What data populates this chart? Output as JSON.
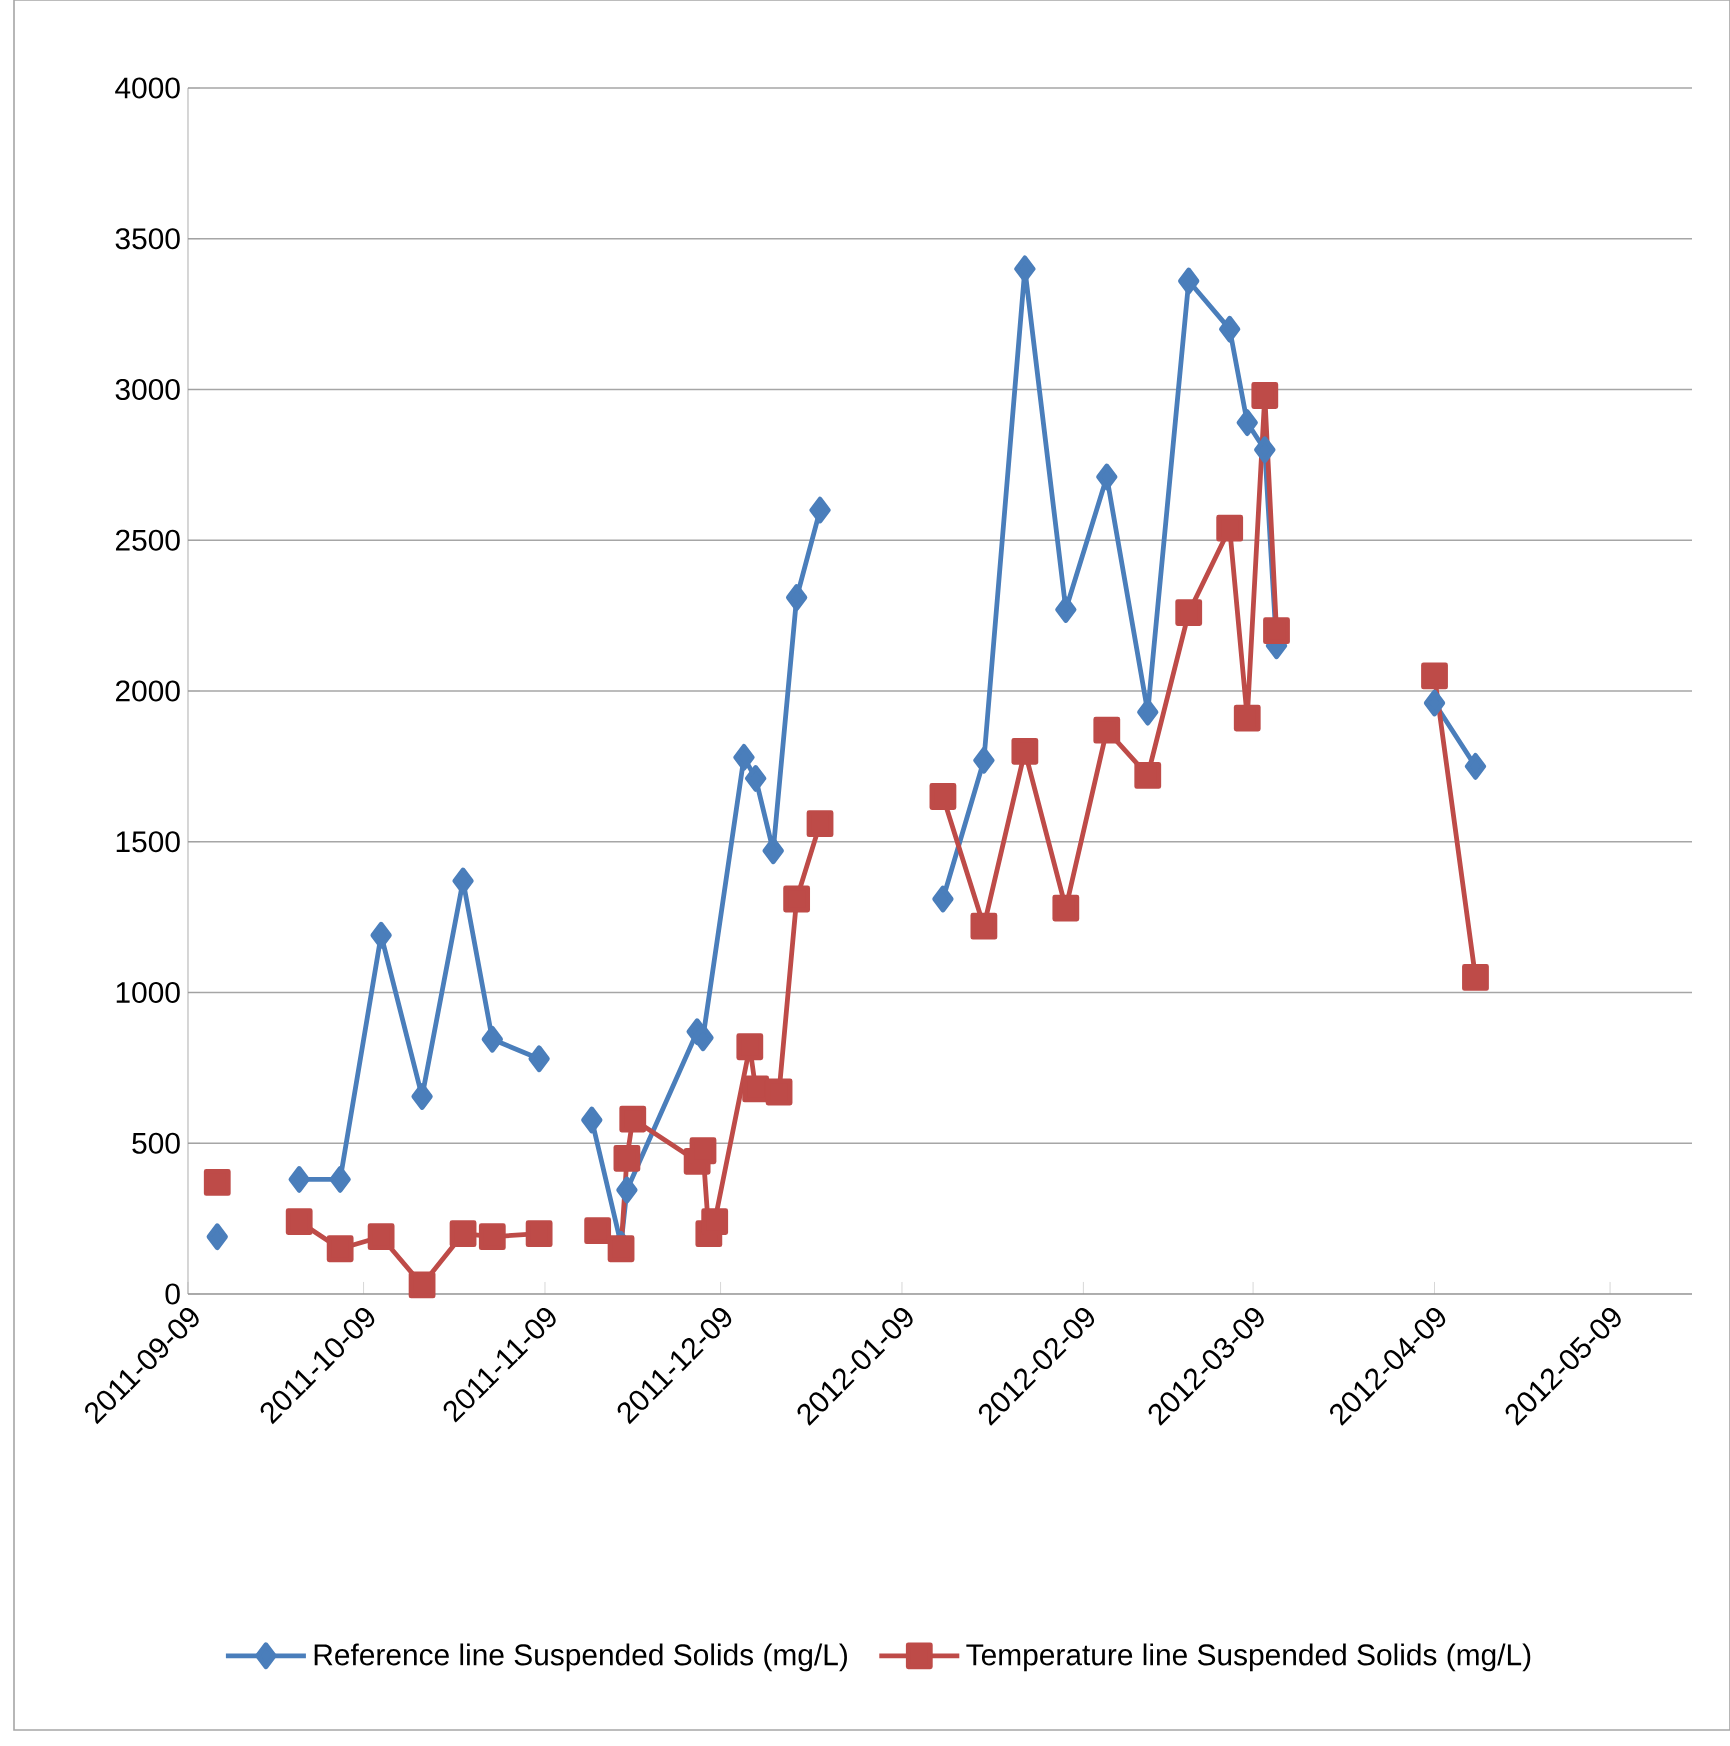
{
  "chart_data": {
    "type": "line",
    "xlim": [
      "2011-09-09",
      "2012-05-23"
    ],
    "xticks": [
      "2011-09-09",
      "2011-10-09",
      "2011-11-09",
      "2011-12-09",
      "2012-01-09",
      "2012-02-09",
      "2012-03-09",
      "2012-04-09",
      "2012-05-09"
    ],
    "ylim": [
      0,
      4000
    ],
    "yticks": [
      0,
      500,
      1000,
      1500,
      2000,
      2500,
      3000,
      3500,
      4000
    ],
    "grid": "y",
    "legend": "bottom",
    "line_style": "solid",
    "series": [
      {
        "name": "Reference line Suspended Solids (mg/L)",
        "color": "#4a7ebb",
        "marker": "diamond",
        "x": [
          "2011-09-14",
          "2011-09-21",
          "2011-09-28",
          "2011-10-05",
          "2011-10-12",
          "2011-10-19",
          "2011-10-26",
          "2011-10-31",
          "2011-11-08",
          "2011-11-12",
          "2011-11-17",
          "2011-11-22",
          "2011-11-23",
          "2011-12-05",
          "2011-12-06",
          "2011-12-13",
          "2011-12-15",
          "2011-12-18",
          "2011-12-22",
          "2011-12-26",
          "2012-01-05",
          "2012-01-16",
          "2012-01-23",
          "2012-01-30",
          "2012-02-06",
          "2012-02-13",
          "2012-02-20",
          "2012-02-27",
          "2012-03-05",
          "2012-03-08",
          "2012-03-11",
          "2012-03-13",
          "2012-03-25",
          "2012-04-09",
          "2012-04-16"
        ],
        "values": [
          190,
          null,
          380,
          380,
          1190,
          655,
          1370,
          845,
          780,
          null,
          577,
          165,
          345,
          870,
          850,
          1780,
          1710,
          1470,
          2310,
          2600,
          null,
          1310,
          1770,
          3400,
          2270,
          2710,
          1930,
          3360,
          3200,
          2890,
          2800,
          2150,
          null,
          1960,
          1750
        ]
      },
      {
        "name": "Temperature line Suspended Solids (mg/L)",
        "color": "#be4b48",
        "marker": "square",
        "x": [
          "2011-09-14",
          "2011-09-21",
          "2011-09-28",
          "2011-10-05",
          "2011-10-12",
          "2011-10-19",
          "2011-10-26",
          "2011-10-31",
          "2011-11-08",
          "2011-11-12",
          "2011-11-18",
          "2011-11-22",
          "2011-11-23",
          "2011-11-24",
          "2011-12-05",
          "2011-12-06",
          "2011-12-07",
          "2011-12-08",
          "2011-12-14",
          "2011-12-15",
          "2011-12-19",
          "2011-12-22",
          "2011-12-26",
          "2012-01-05",
          "2012-01-16",
          "2012-01-23",
          "2012-01-30",
          "2012-02-06",
          "2012-02-13",
          "2012-02-20",
          "2012-02-27",
          "2012-03-05",
          "2012-03-08",
          "2012-03-11",
          "2012-03-13",
          "2012-03-25",
          "2012-04-09",
          "2012-04-16"
        ],
        "values": [
          370,
          null,
          240,
          150,
          190,
          30,
          200,
          190,
          200,
          null,
          210,
          150,
          450,
          580,
          440,
          475,
          200,
          240,
          820,
          680,
          670,
          1310,
          1560,
          null,
          1650,
          1220,
          1800,
          1280,
          1870,
          1720,
          2260,
          2540,
          1910,
          2980,
          2200,
          null,
          2050,
          1050
        ]
      }
    ]
  }
}
